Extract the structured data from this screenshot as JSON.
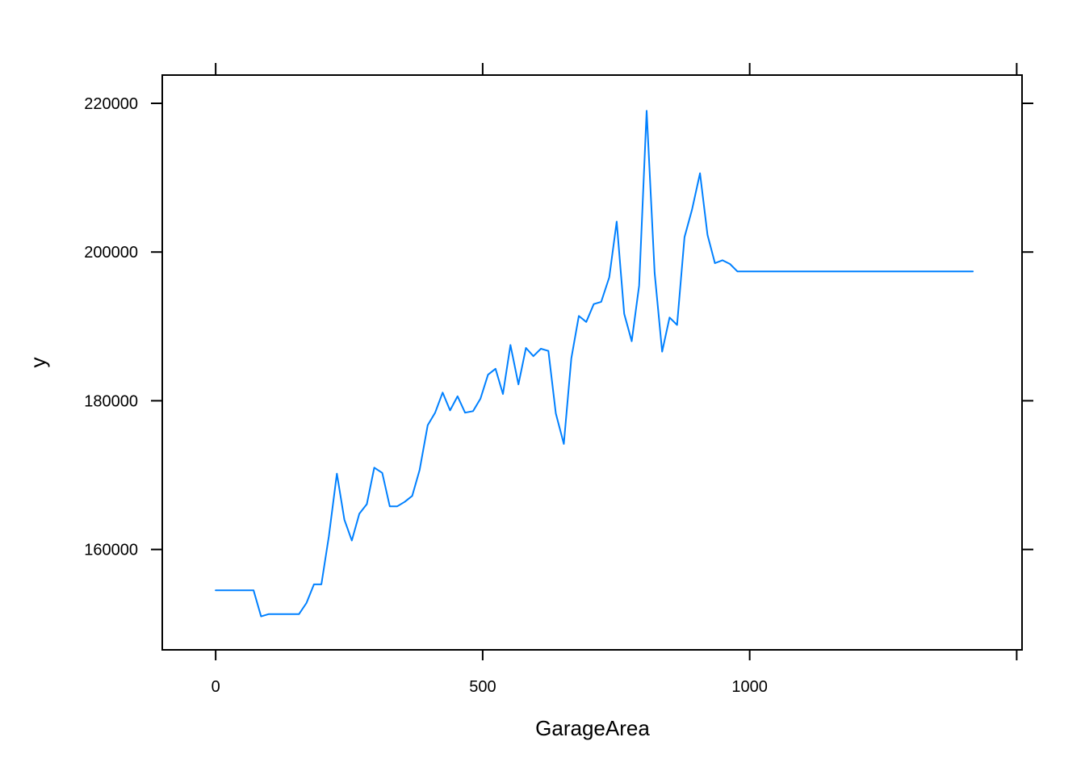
{
  "chart_data": {
    "type": "line",
    "title": "",
    "xlabel": "GarageArea",
    "ylabel": "y",
    "xlim": [
      -100,
      1510
    ],
    "ylim": [
      146500,
      223800
    ],
    "x_ticks": [
      0,
      500,
      1000
    ],
    "x_tick_labels": [
      "0",
      "500",
      "1000"
    ],
    "x_top_ticks": [
      0,
      500,
      1000,
      1500
    ],
    "y_ticks": [
      160000,
      180000,
      200000,
      220000
    ],
    "y_tick_labels": [
      "160000",
      "180000",
      "200000",
      "220000"
    ],
    "grid": false,
    "legend": "none",
    "series_color": "#0080ff",
    "x": [
      0,
      14,
      28,
      42,
      56,
      71,
      85,
      99,
      113,
      127,
      141,
      156,
      170,
      184,
      198,
      212,
      227,
      241,
      255,
      269,
      283,
      297,
      312,
      326,
      340,
      354,
      368,
      382,
      397,
      411,
      425,
      439,
      453,
      467,
      482,
      496,
      510,
      524,
      538,
      552,
      567,
      581,
      595,
      609,
      623,
      637,
      652,
      666,
      680,
      694,
      708,
      722,
      737,
      751,
      765,
      779,
      793,
      807,
      822,
      836,
      850,
      864,
      878,
      892,
      907,
      921,
      935,
      949,
      963,
      977,
      992,
      1418
    ],
    "y": [
      154500,
      154500,
      154500,
      154500,
      154500,
      154500,
      151000,
      151300,
      151300,
      151300,
      151300,
      151300,
      152800,
      155300,
      155300,
      161800,
      170200,
      164000,
      161200,
      164800,
      166100,
      171000,
      170300,
      165800,
      165800,
      166400,
      167200,
      170700,
      176700,
      178400,
      181100,
      178700,
      180600,
      178400,
      178600,
      180300,
      183500,
      184300,
      180900,
      187500,
      182200,
      187100,
      186000,
      187000,
      186700,
      178300,
      174200,
      185700,
      191400,
      190600,
      193000,
      193300,
      196600,
      204100,
      191700,
      188000,
      195500,
      219000,
      197200,
      186600,
      191200,
      190200,
      202000,
      205700,
      210600,
      202300,
      198500,
      198900,
      198400,
      197400,
      197400,
      197400
    ]
  }
}
